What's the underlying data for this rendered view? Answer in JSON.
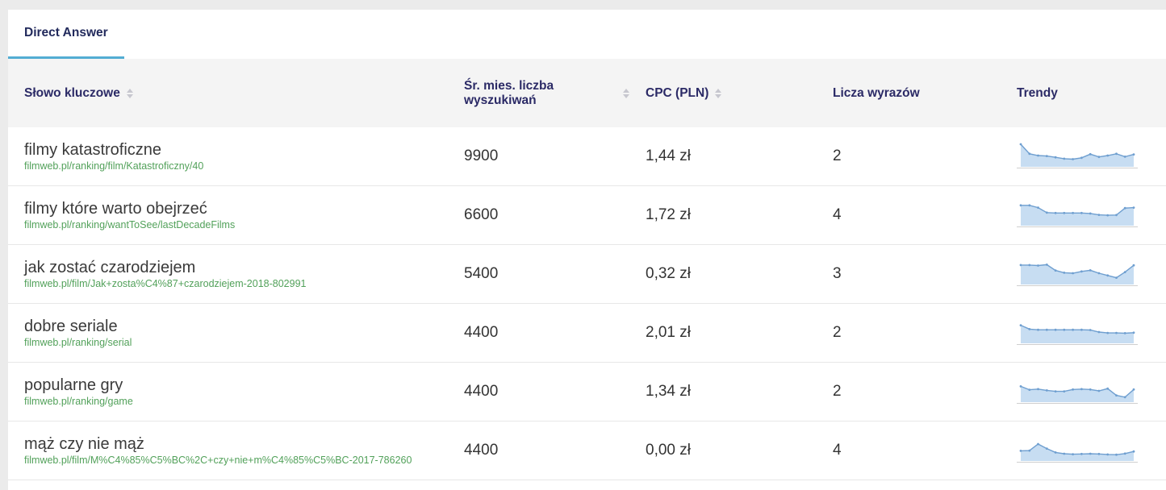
{
  "tab": {
    "label": "Direct Answer"
  },
  "colors": {
    "tab_underline": "#52add3",
    "header_text": "#2b2a66",
    "url_green": "#52a15a",
    "spark_fill": "#c7ddf2",
    "spark_line": "#6f9fd0",
    "spark_baseline": "#cfcfcf",
    "header_bg": "#f4f4f4"
  },
  "table": {
    "columns": [
      {
        "label": "Słowo kluczowe",
        "sortable": true
      },
      {
        "label": "Śr. mies. liczba wyszukiwań",
        "sortable": true
      },
      {
        "label": "CPC (PLN)",
        "sortable": true
      },
      {
        "label": "Licza wyrazów",
        "sortable": false
      },
      {
        "label": "Trendy",
        "sortable": false
      }
    ],
    "rows": [
      {
        "keyword": "filmy katastroficzne",
        "url": "filmweb.pl/ranking/film/Katastroficzny/40",
        "searches": "9900",
        "cpc": "1,44 zł",
        "words": "2"
      },
      {
        "keyword": "filmy które warto obejrzeć",
        "url": "filmweb.pl/ranking/wantToSee/lastDecadeFilms",
        "searches": "6600",
        "cpc": "1,72 zł",
        "words": "4"
      },
      {
        "keyword": "jak zostać czarodziejem",
        "url": "filmweb.pl/film/Jak+zosta%C4%87+czarodziejem-2018-802991",
        "searches": "5400",
        "cpc": "0,32 zł",
        "words": "3"
      },
      {
        "keyword": "dobre seriale",
        "url": "filmweb.pl/ranking/serial",
        "searches": "4400",
        "cpc": "2,01 zł",
        "words": "2"
      },
      {
        "keyword": "popularne gry",
        "url": "filmweb.pl/ranking/game",
        "searches": "4400",
        "cpc": "1,34 zł",
        "words": "2"
      },
      {
        "keyword": "mąż czy nie mąż",
        "url": "filmweb.pl/film/M%C4%85%C5%BC%2C+czy+nie+m%C4%85%C5%BC-2017-786260",
        "searches": "4400",
        "cpc": "0,00 zł",
        "words": "4"
      }
    ]
  },
  "chart_data": {
    "type": "area",
    "title": "Trendy",
    "ylim": [
      0,
      100
    ],
    "legend": "none",
    "series": [
      {
        "name": "filmy katastroficzne",
        "values": [
          100,
          58,
          50,
          48,
          42,
          36,
          34,
          40,
          56,
          44,
          50,
          58,
          45,
          55
        ]
      },
      {
        "name": "filmy które warto obejrzeć",
        "values": [
          90,
          90,
          80,
          58,
          56,
          56,
          56,
          56,
          54,
          48,
          46,
          47,
          78,
          80
        ]
      },
      {
        "name": "jak zostać czarodziejem",
        "values": [
          86,
          86,
          84,
          88,
          62,
          52,
          50,
          58,
          63,
          50,
          40,
          30,
          55,
          85
        ]
      },
      {
        "name": "dobre seriale",
        "values": [
          80,
          63,
          60,
          60,
          60,
          60,
          60,
          60,
          59,
          50,
          46,
          46,
          45,
          47
        ]
      },
      {
        "name": "popularne gry",
        "values": [
          70,
          55,
          58,
          52,
          48,
          48,
          56,
          58,
          56,
          50,
          60,
          30,
          22,
          56
        ]
      },
      {
        "name": "mąż czy nie mąż",
        "values": [
          45,
          46,
          75,
          55,
          38,
          32,
          30,
          31,
          32,
          31,
          29,
          28,
          33,
          42
        ]
      }
    ]
  }
}
